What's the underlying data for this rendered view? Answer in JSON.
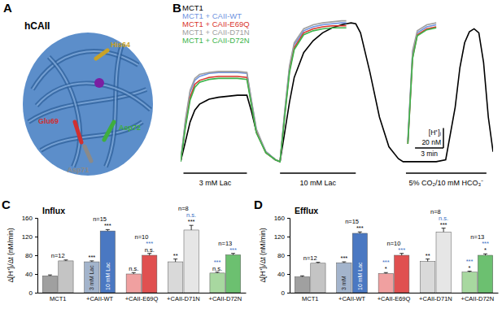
{
  "panel_a": {
    "panel": "A",
    "title": "hCAII",
    "residues": [
      {
        "label": "His64",
        "color": "#c9a227"
      },
      {
        "label": "Glu69",
        "color": "#d03030"
      },
      {
        "label": "Asp72",
        "color": "#3fae3f"
      },
      {
        "label": "Asp71",
        "color": "#8a8a8a"
      }
    ]
  },
  "chart_data": [
    {
      "panel": "B",
      "type": "line",
      "legend": "top-left",
      "tick_labels": false,
      "xlim": [
        0,
        33
      ],
      "ylim": [
        -5,
        145
      ],
      "x": [
        0,
        0.5,
        1,
        1.5,
        2,
        3,
        4,
        5,
        6,
        7,
        7.5,
        8,
        9,
        10,
        10.5,
        11,
        11.5,
        12,
        13,
        14,
        15,
        16,
        17,
        17.5,
        18,
        18.5,
        19,
        20,
        21,
        22,
        23,
        23.5,
        24,
        24.5,
        25,
        26,
        27,
        28,
        29,
        29.5,
        30,
        30.5,
        31,
        31.5,
        32,
        32.5,
        33
      ],
      "series": [
        {
          "name": "MCT1",
          "color": "#000000",
          "values": [
            0,
            20,
            40,
            52,
            58,
            63,
            65,
            66,
            67,
            67,
            50,
            30,
            10,
            2,
            0,
            30,
            60,
            85,
            110,
            122,
            130,
            135,
            138,
            139,
            140,
            139,
            130,
            90,
            45,
            15,
            3,
            0,
            0,
            0,
            0,
            0,
            0,
            2,
            55,
            95,
            120,
            131,
            134,
            130,
            100,
            45,
            10
          ]
        },
        {
          "name": "MCT1 + CAII-WT",
          "color": "#6f93e0",
          "values": [
            0,
            40,
            70,
            82,
            86,
            89,
            90,
            90,
            90,
            89,
            60,
            32,
            10,
            2,
            0,
            50,
            95,
            118,
            132,
            136,
            138,
            139,
            140,
            140,
            null,
            null,
            null,
            null,
            null,
            null,
            null,
            null,
            20,
            110,
            130,
            136,
            138,
            null,
            null,
            null,
            null,
            null,
            null,
            null,
            null,
            null,
            null
          ]
        },
        {
          "name": "MCT1 + CAII-E69Q",
          "color": "#d9342b",
          "values": [
            0,
            36,
            65,
            78,
            82,
            85,
            86,
            86,
            86,
            85,
            57,
            30,
            9,
            2,
            0,
            48,
            92,
            115,
            130,
            134,
            136,
            137,
            137,
            137,
            null,
            null,
            null,
            null,
            null,
            null,
            null,
            null,
            18,
            105,
            128,
            134,
            136,
            null,
            null,
            null,
            null,
            null,
            null,
            null,
            null,
            null,
            null
          ]
        },
        {
          "name": "MCT1 + CAII-D71N",
          "color": "#a0a0a0",
          "values": [
            0,
            42,
            72,
            84,
            88,
            90,
            91,
            91,
            91,
            90,
            61,
            33,
            10,
            2,
            0,
            52,
            97,
            120,
            134,
            138,
            140,
            141,
            142,
            142,
            null,
            null,
            null,
            null,
            null,
            null,
            null,
            null,
            22,
            112,
            132,
            138,
            140,
            null,
            null,
            null,
            null,
            null,
            null,
            null,
            null,
            null,
            null
          ]
        },
        {
          "name": "MCT1 + CAII-D72N",
          "color": "#3cb44b",
          "values": [
            0,
            34,
            62,
            75,
            80,
            83,
            84,
            84,
            84,
            83,
            56,
            29,
            9,
            2,
            0,
            46,
            90,
            113,
            128,
            132,
            134,
            135,
            135,
            135,
            null,
            null,
            null,
            null,
            null,
            null,
            null,
            null,
            18,
            104,
            127,
            133,
            135,
            null,
            null,
            null,
            null,
            null,
            null,
            null,
            null,
            null,
            null
          ]
        }
      ],
      "stimuli": [
        {
          "label": "3 mM Lac",
          "start": 0.3,
          "end": 7
        },
        {
          "label": "10 mM Lac",
          "start": 10.5,
          "end": 18.5
        },
        {
          "label": "5% CO₂/10 mM HCO₃⁻",
          "start": 23.8,
          "end": 32.3
        }
      ],
      "scale_bars": {
        "y": {
          "label": "[H⁺]ᵢ",
          "value": 20,
          "value_label": "20 nM"
        },
        "x": {
          "value": 3,
          "value_label": "3 min"
        }
      }
    },
    {
      "panel": "C",
      "type": "bar",
      "title": "Influx",
      "y_label": "Δ[H⁺]ᵢ/Δt (nM/min)",
      "categories": [
        "MCT1",
        "+CAII-WT",
        "+CAII-E69Q",
        "+CAII-D71N",
        "+CAII-D72N"
      ],
      "ylim": [
        0,
        160
      ],
      "yticks": [
        0,
        40,
        80,
        120,
        160
      ],
      "n_labels": [
        "n=12",
        "n=15",
        "n=10",
        "n=8",
        "n=13"
      ],
      "series": [
        {
          "name": "3 mM Lac",
          "colors": [
            "#a0a0a0",
            "#a3b4cc",
            "#f0a0a0",
            "#d9d9d9",
            "#a8d8a0"
          ],
          "values": [
            36,
            66,
            40,
            66,
            42
          ],
          "errors": [
            2,
            2,
            3,
            6,
            2
          ],
          "significance": [
            [],
            [
              {
                "text": "***",
                "color": "#000000"
              }
            ],
            [
              {
                "text": "n.s.",
                "color": "#000000"
              }
            ],
            [
              {
                "text": "**",
                "color": "#000000"
              }
            ],
            [
              {
                "text": "n.s.",
                "color": "#000000"
              },
              {
                "text": "***",
                "color": "#3a6fc4"
              }
            ]
          ]
        },
        {
          "name": "10 mM Lac",
          "colors": [
            "#c4c4c4",
            "#4a78c2",
            "#e05050",
            "#e6e6e6",
            "#6cc070"
          ],
          "values": [
            68,
            132,
            80,
            134,
            81
          ],
          "errors": [
            2,
            3,
            4,
            10,
            3
          ],
          "significance": [
            [],
            [
              {
                "text": "***",
                "color": "#000000"
              }
            ],
            [
              {
                "text": "n.s.",
                "color": "#000000"
              },
              {
                "text": "***",
                "color": "#3a6fc4"
              }
            ],
            [
              {
                "text": "***",
                "color": "#000000"
              },
              {
                "text": "n.s.",
                "color": "#3a6fc4"
              }
            ],
            [
              {
                "text": "***",
                "color": "#3a6fc4"
              }
            ]
          ]
        }
      ]
    },
    {
      "panel": "D",
      "type": "bar",
      "title": "Efflux",
      "y_label": "Δ[H⁺]ᵢ/Δt (nM/min)",
      "categories": [
        "MCT1",
        "+CAII-WT",
        "+CAII-E69Q",
        "+CAII-D71N",
        "+CAII-D72N"
      ],
      "ylim": [
        0,
        160
      ],
      "yticks": [
        0,
        40,
        80,
        120,
        160
      ],
      "n_labels": [
        "n=12",
        "n=15",
        "n=10",
        "n=8",
        "n=13"
      ],
      "series": [
        {
          "name": "3 mM",
          "colors": [
            "#a0a0a0",
            "#a3b4cc",
            "#f0a0a0",
            "#d9d9d9",
            "#a8d8a0"
          ],
          "values": [
            34,
            64,
            41,
            67,
            44
          ],
          "errors": [
            2,
            2,
            2,
            5,
            2
          ],
          "significance": [
            [],
            [
              {
                "text": "***",
                "color": "#000000"
              }
            ],
            [
              {
                "text": "*",
                "color": "#000000"
              },
              {
                "text": "***",
                "color": "#3a6fc4"
              }
            ],
            [
              {
                "text": "**",
                "color": "#000000"
              }
            ],
            [
              {
                "text": "*",
                "color": "#000000"
              },
              {
                "text": "***",
                "color": "#3a6fc4"
              }
            ]
          ]
        },
        {
          "name": "10 mM Lac",
          "colors": [
            "#c4c4c4",
            "#4a78c2",
            "#e05050",
            "#e6e6e6",
            "#6cc070"
          ],
          "values": [
            63,
            127,
            80,
            130,
            80
          ],
          "errors": [
            2,
            3,
            4,
            8,
            3
          ],
          "significance": [
            [],
            [
              {
                "text": "***",
                "color": "#000000"
              }
            ],
            [
              {
                "text": "***",
                "color": "#3a6fc4"
              }
            ],
            [
              {
                "text": "***",
                "color": "#000000"
              },
              {
                "text": "n.s.",
                "color": "#3a6fc4"
              }
            ],
            [
              {
                "text": "*",
                "color": "#000000"
              },
              {
                "text": "***",
                "color": "#3a6fc4"
              }
            ]
          ]
        }
      ]
    }
  ]
}
